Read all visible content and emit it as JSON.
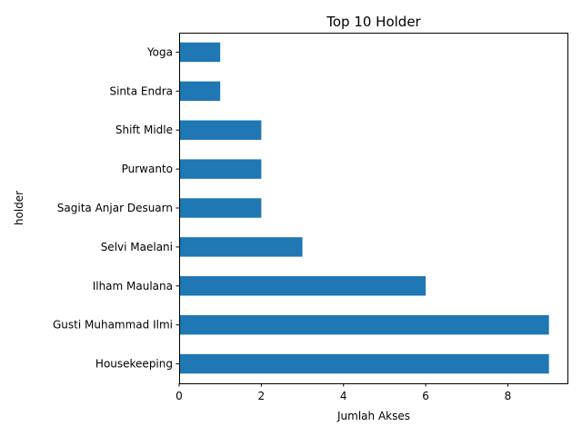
{
  "chart_data": {
    "type": "bar",
    "orientation": "horizontal",
    "title": "Top 10 Holder",
    "xlabel": "Jumlah Akses",
    "ylabel": "holder",
    "categories": [
      "Housekeeping",
      "Gusti Muhammad Ilmi",
      "Ilham Maulana",
      "Selvi Maelani",
      "Sagita Anjar Desuarn",
      "Purwanto",
      "Shift Midle",
      "Sinta Endra",
      "Yoga"
    ],
    "values": [
      9,
      9,
      6,
      3,
      2,
      2,
      2,
      1,
      1
    ],
    "xlim": [
      0,
      9.45
    ],
    "xticks": [
      0,
      2,
      4,
      6,
      8
    ],
    "grid": false,
    "legend": "none",
    "bar_color": "#1f77b4"
  }
}
